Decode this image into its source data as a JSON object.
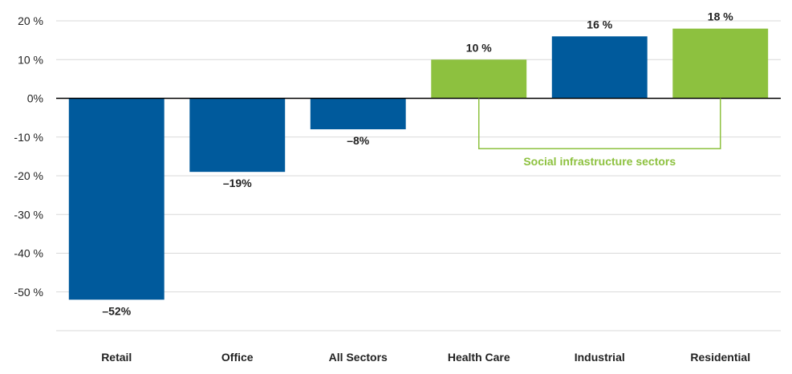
{
  "chart_data": {
    "type": "bar",
    "categories": [
      "Retail",
      "Office",
      "All Sectors",
      "Health Care",
      "Industrial",
      "Residential"
    ],
    "values": [
      -52,
      -19,
      -8,
      10,
      16,
      18
    ],
    "data_labels": [
      "–52%",
      "–19%",
      "–8%",
      "10 %",
      "16 %",
      "18 %"
    ],
    "bar_colors": [
      "#005a9c",
      "#005a9c",
      "#005a9c",
      "#8dc13f",
      "#005a9c",
      "#8dc13f"
    ],
    "ylim": [
      -60,
      20
    ],
    "yticks": [
      20,
      10,
      0,
      -10,
      -20,
      -30,
      -40,
      -50
    ],
    "ytick_labels": [
      "20 %",
      "10 %",
      "0%",
      "-10 %",
      "-20 %",
      "-30 %",
      "-40 %",
      "-50 %"
    ],
    "grid": true,
    "annotation": {
      "text": "Social infrastructure sectors",
      "color": "#8dc13f",
      "spans_categories": [
        "Health Care",
        "Residential"
      ]
    },
    "colors": {
      "primary": "#005a9c",
      "accent": "#8dc13f",
      "grid": "#d9d9d9",
      "zero_line": "#000000"
    }
  }
}
